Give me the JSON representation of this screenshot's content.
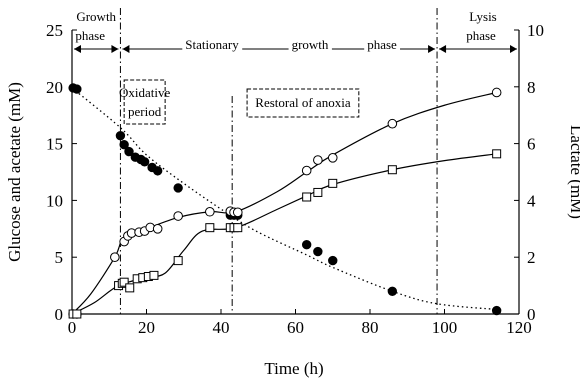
{
  "chart_data": {
    "type": "scatter",
    "xlabel": "Time (h)",
    "ylabel_left": "Glucose and acetate (mM)",
    "ylabel_right": "Lactate (mM)",
    "xlim": [
      0,
      120
    ],
    "ylim_left": [
      0,
      25
    ],
    "ylim_right": [
      0,
      10
    ],
    "x_ticks": [
      0,
      20,
      40,
      60,
      80,
      100,
      120
    ],
    "y_left_ticks": [
      0,
      5,
      10,
      15,
      20,
      25
    ],
    "y_right_ticks": [
      0,
      2,
      4,
      6,
      8,
      10
    ],
    "grid": false,
    "phases": [
      {
        "label_lines": [
          "Growth",
          "phase"
        ],
        "x_start": 0,
        "x_end": 13
      },
      {
        "label_words": [
          "Stationary",
          "growth",
          "phase"
        ],
        "x_start": 13,
        "x_end": 98
      },
      {
        "label_lines": [
          "Lysis",
          "phase"
        ],
        "x_start": 98,
        "x_end": 120
      }
    ],
    "vertical_lines": [
      13,
      43,
      98
    ],
    "boxes": [
      {
        "label_lines": [
          "Oxidative",
          "period"
        ],
        "x_start": 14,
        "x_end": 25
      },
      {
        "label_lines": [
          "Restoral of anoxia"
        ],
        "x_start": 47,
        "x_end": 77
      }
    ],
    "series": [
      {
        "marker": "filled-circle",
        "axis": "left",
        "points": [
          [
            0.3,
            19.9
          ],
          [
            1.3,
            19.8
          ],
          [
            13,
            15.7
          ],
          [
            14,
            14.9
          ],
          [
            15.3,
            14.3
          ],
          [
            17,
            13.8
          ],
          [
            18.5,
            13.6
          ],
          [
            19.5,
            13.4
          ],
          [
            21.5,
            12.9
          ],
          [
            23,
            12.6
          ],
          [
            28.5,
            11.1
          ],
          [
            42.5,
            8.7
          ],
          [
            43.5,
            8.7
          ],
          [
            44.5,
            8.7
          ],
          [
            63,
            6.1
          ],
          [
            66,
            5.5
          ],
          [
            70,
            4.7
          ],
          [
            86,
            2.0
          ],
          [
            114,
            0.3
          ]
        ],
        "trend_curve": [
          [
            0,
            19.9
          ],
          [
            13,
            16.4
          ],
          [
            20,
            14.0
          ],
          [
            30,
            11.5
          ],
          [
            42,
            8.8
          ],
          [
            50,
            7.2
          ],
          [
            63,
            5.2
          ],
          [
            70,
            4.1
          ],
          [
            86,
            2.0
          ],
          [
            98,
            0.9
          ],
          [
            114,
            0.4
          ]
        ]
      },
      {
        "marker": "open-circle",
        "axis": "right",
        "points": [
          [
            0.3,
            0
          ],
          [
            1.3,
            0
          ],
          [
            11.5,
            2.0
          ],
          [
            14,
            2.55
          ],
          [
            15,
            2.75
          ],
          [
            16,
            2.85
          ],
          [
            18,
            2.88
          ],
          [
            19.5,
            2.92
          ],
          [
            21,
            3.05
          ],
          [
            23,
            3.0
          ],
          [
            28.5,
            3.45
          ],
          [
            37,
            3.6
          ],
          [
            42.5,
            3.62
          ],
          [
            43.5,
            3.58
          ],
          [
            44.5,
            3.58
          ],
          [
            63,
            5.05
          ],
          [
            66,
            5.42
          ],
          [
            70,
            5.5
          ],
          [
            86,
            6.7
          ],
          [
            114,
            7.8
          ]
        ],
        "trend_curve": [
          [
            0,
            0
          ],
          [
            5,
            0.7
          ],
          [
            11.5,
            2.0
          ],
          [
            14,
            2.7
          ],
          [
            20,
            3.0
          ],
          [
            28.5,
            3.4
          ],
          [
            37,
            3.6
          ],
          [
            44,
            3.6
          ],
          [
            55,
            4.3
          ],
          [
            63,
            5.0
          ],
          [
            70,
            5.6
          ],
          [
            86,
            6.7
          ],
          [
            100,
            7.35
          ],
          [
            114,
            7.8
          ]
        ]
      },
      {
        "marker": "open-square",
        "axis": "left",
        "points": [
          [
            0.3,
            0
          ],
          [
            1.3,
            0
          ],
          [
            12.5,
            2.5
          ],
          [
            13.5,
            2.7
          ],
          [
            14,
            2.8
          ],
          [
            15.5,
            2.3
          ],
          [
            17.5,
            3.1
          ],
          [
            19,
            3.2
          ],
          [
            20.5,
            3.3
          ],
          [
            22,
            3.4
          ],
          [
            28.5,
            4.7
          ],
          [
            37,
            7.6
          ],
          [
            42.5,
            7.6
          ],
          [
            43.5,
            7.6
          ],
          [
            44.5,
            7.6
          ],
          [
            63,
            10.3
          ],
          [
            66,
            10.7
          ],
          [
            70,
            11.5
          ],
          [
            86,
            12.7
          ],
          [
            114,
            14.1
          ]
        ],
        "trend_curve": [
          [
            0,
            0
          ],
          [
            6,
            1.0
          ],
          [
            12.5,
            2.5
          ],
          [
            20,
            3.2
          ],
          [
            25,
            3.6
          ],
          [
            30,
            5.6
          ],
          [
            35,
            7.3
          ],
          [
            44,
            7.6
          ],
          [
            55,
            9.2
          ],
          [
            63,
            10.4
          ],
          [
            70,
            11.4
          ],
          [
            86,
            12.7
          ],
          [
            100,
            13.5
          ],
          [
            114,
            14.1
          ]
        ]
      }
    ]
  }
}
